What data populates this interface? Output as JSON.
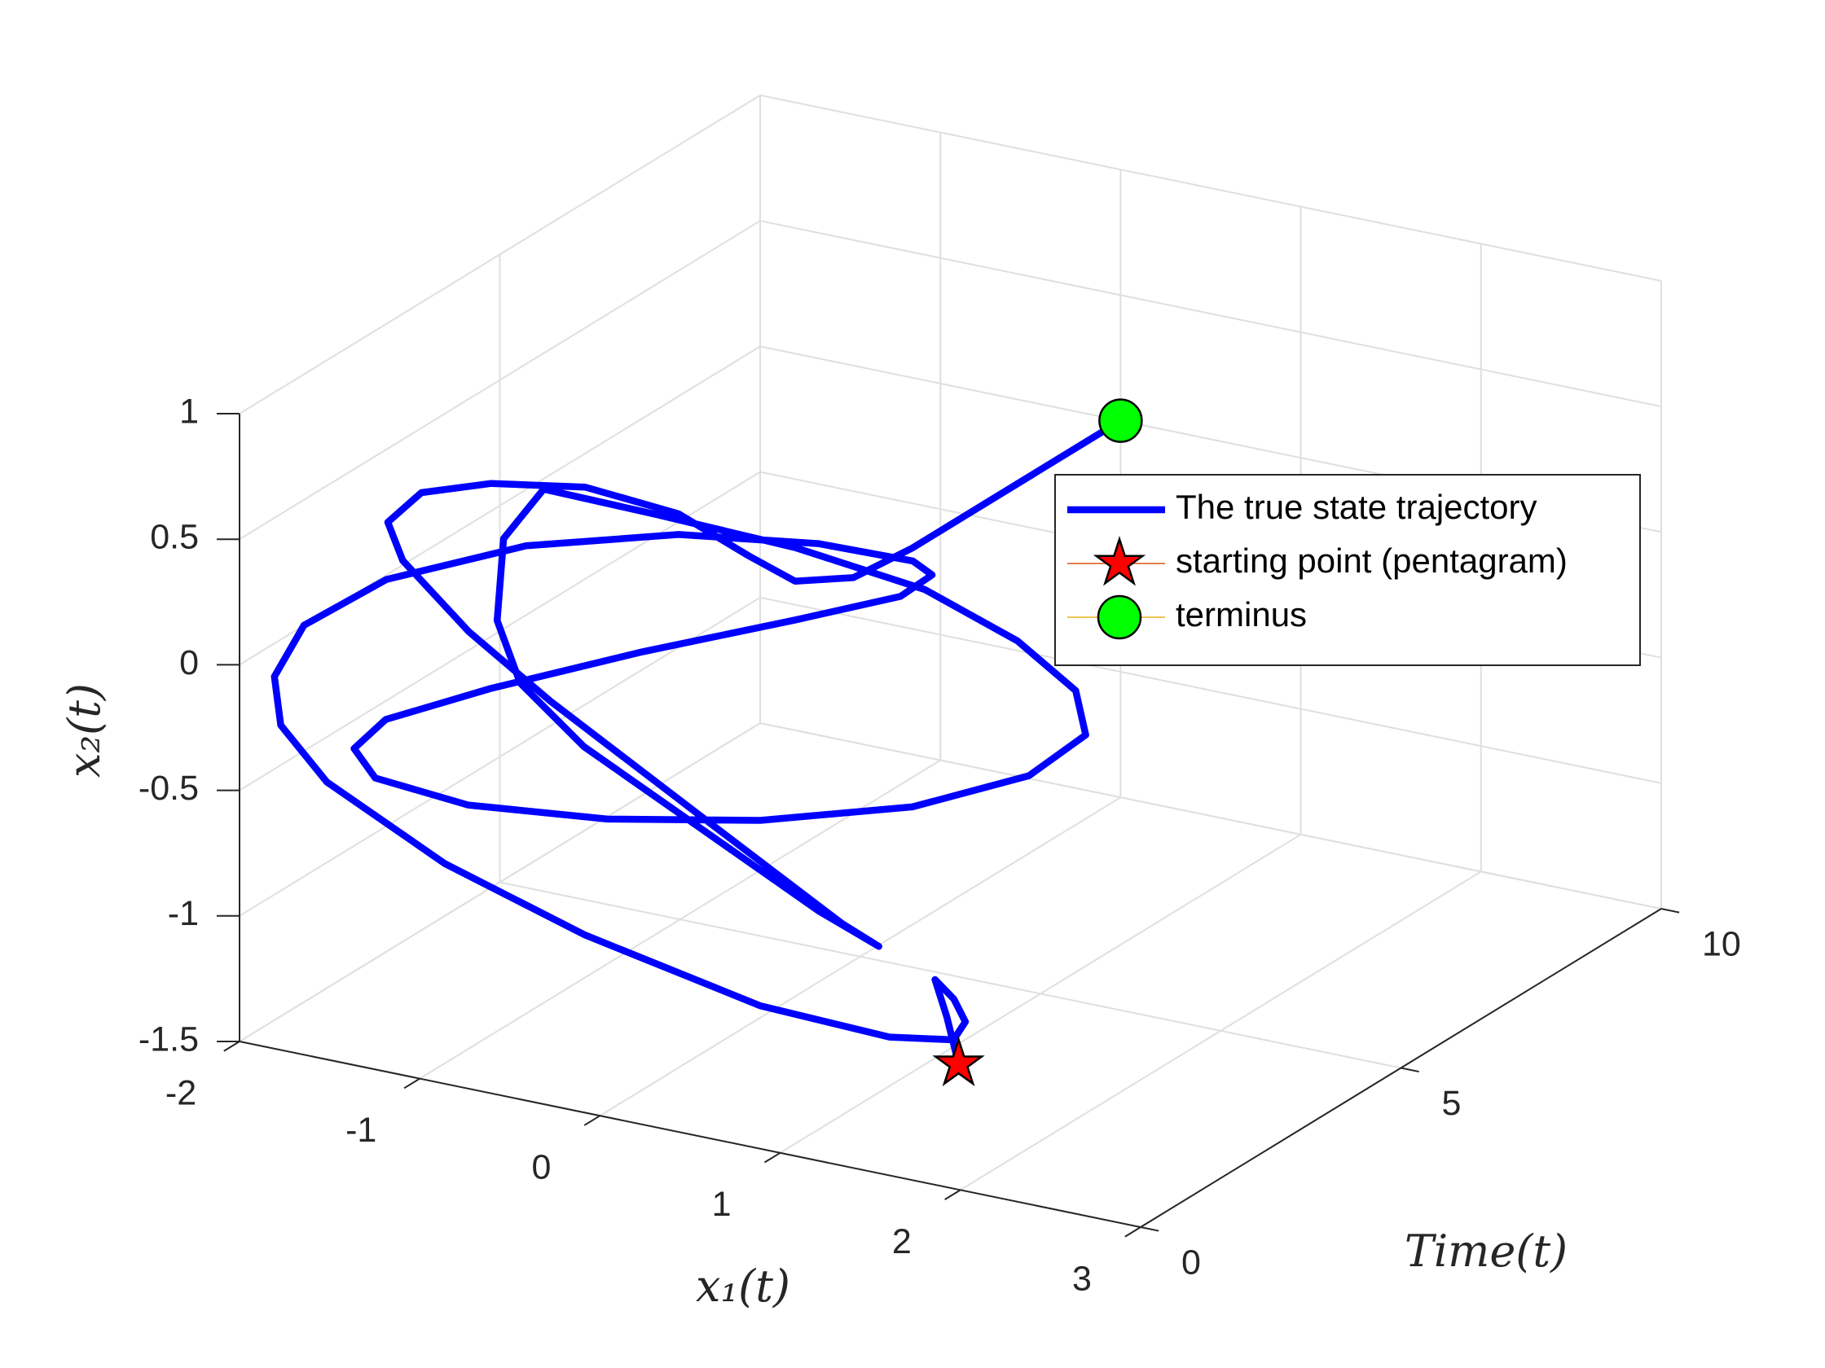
{
  "chart_data": {
    "type": "line3d",
    "xlabel": "x₁(t)",
    "ylabel": "Time(t)",
    "zlabel": "x₂(t)",
    "xlim": [
      -2,
      3
    ],
    "xticks": [
      -2,
      -1,
      0,
      1,
      2,
      3
    ],
    "ylim": [
      0,
      10
    ],
    "yticks": [
      0,
      5,
      10
    ],
    "zlim": [
      -1.5,
      1
    ],
    "zticks": [
      -1.5,
      -1,
      -0.5,
      0,
      0.5,
      1
    ],
    "grid": true,
    "legend": "northeast",
    "series": [
      {
        "name": "The true state trajectory",
        "color": "#0000ff",
        "x": [
          1.99,
          1.91,
          1.83,
          1.92,
          1.97,
          1.89,
          1.52,
          0.79,
          -0.2,
          -0.99,
          -1.66,
          -1.93,
          -1.98,
          -1.83,
          -1.39,
          -0.63,
          0.2,
          0.96,
          1.47,
          1.56,
          1.37,
          0.77,
          -0.09,
          -0.95,
          -1.55,
          -1.74,
          -1.64,
          -1.14,
          -0.38,
          0.45,
          1.28,
          1.91,
          2.21,
          2.14,
          1.8,
          1.27,
          0.54,
          -0.26,
          -0.89,
          -1.13,
          -1.18,
          -1.07,
          -0.73,
          -0.09,
          0.54,
          0.86,
          0.64,
          -0.15,
          -1.01,
          -1.48,
          -1.86,
          -1.96,
          -1.8,
          -1.47,
          -1.02,
          -0.59,
          -0.3,
          -0.16,
          -0.01,
          0,
          0,
          0
        ],
        "y": [
          0,
          0.05,
          0.1,
          0.15,
          0.2,
          0.25,
          0.3,
          0.35,
          0.4,
          0.45,
          0.5,
          0.55,
          0.6,
          0.65,
          0.71,
          0.76,
          0.82,
          0.87,
          0.92,
          0.98,
          1.03,
          1.09,
          1.14,
          1.19,
          1.25,
          1.3,
          1.36,
          1.41,
          1.46,
          1.52,
          1.57,
          1.63,
          1.68,
          1.73,
          1.79,
          1.84,
          1.9,
          1.95,
          2.0,
          2.06,
          2.11,
          2.17,
          2.22,
          2.27,
          2.33,
          2.38,
          2.44,
          2.49,
          2.54,
          2.6,
          2.65,
          2.71,
          2.8,
          3,
          3.25,
          3.55,
          3.9,
          4.3,
          4.9,
          6,
          7.8,
          10
        ],
        "z": [
          -1,
          -0.83,
          -0.7,
          -0.77,
          -0.86,
          -0.95,
          -1,
          -0.99,
          -0.86,
          -0.7,
          -0.48,
          -0.3,
          -0.12,
          0.1,
          0.34,
          0.58,
          0.74,
          0.81,
          0.81,
          0.76,
          0.64,
          0.45,
          0.19,
          -0.09,
          -0.31,
          -0.46,
          -0.57,
          -0.61,
          -0.56,
          -0.45,
          -0.28,
          -0.07,
          0.13,
          0.29,
          0.43,
          0.55,
          0.6,
          0.61,
          0.61,
          0.37,
          0.03,
          -0.21,
          -0.42,
          -0.66,
          -0.9,
          -1,
          -0.95,
          -0.65,
          -0.32,
          -0.12,
          0.1,
          0.23,
          0.36,
          0.42,
          0.44,
          0.36,
          0.19,
          0.06,
          0.02,
          0,
          0,
          0
        ]
      },
      {
        "name": "starting point (pentagram)",
        "color": "#d95319",
        "marker": "pentagram",
        "marker_color": "#ff0000",
        "x": [
          1.99
        ],
        "y": [
          0
        ],
        "z": [
          -1
        ]
      },
      {
        "name": "terminus",
        "color": "#edb120",
        "marker": "circle",
        "marker_color": "#00ff00",
        "x": [
          0
        ],
        "y": [
          10
        ],
        "z": [
          0
        ]
      }
    ]
  }
}
